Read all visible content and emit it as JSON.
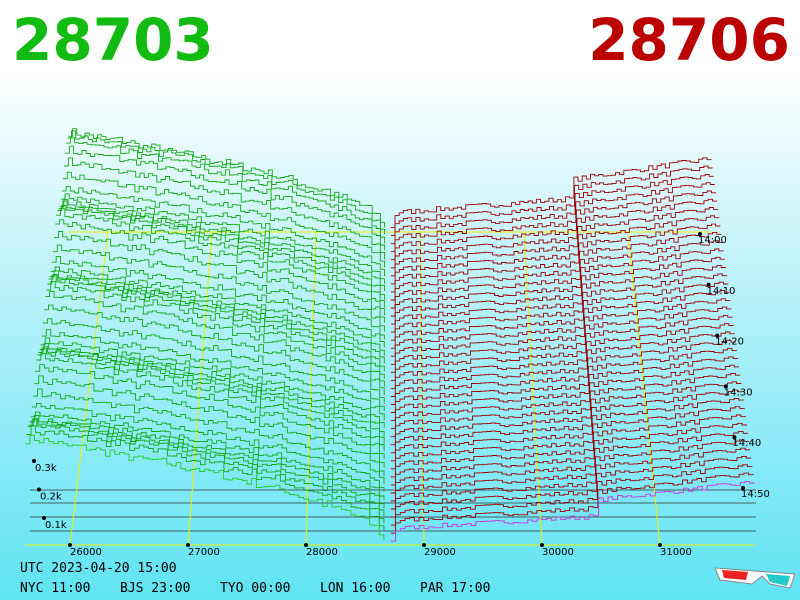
{
  "header": {
    "bid": "28703",
    "ask": "28706"
  },
  "price_axis": {
    "ticks": [
      26000,
      27000,
      28000,
      29000,
      30000,
      31000
    ]
  },
  "depth_axis": {
    "labels": [
      "0.3k",
      "0.2k",
      "0.1k"
    ]
  },
  "time_axis": {
    "labels": [
      "14:00",
      "14:10",
      "14:20",
      "14:30",
      "14:40",
      "14:50"
    ]
  },
  "footer": {
    "utc": "UTC 2023-04-20 15:00",
    "cities": [
      "NYC 11:00",
      "BJS 23:00",
      "TYO 00:00",
      "LON 16:00",
      "PAR 17:00"
    ]
  }
}
